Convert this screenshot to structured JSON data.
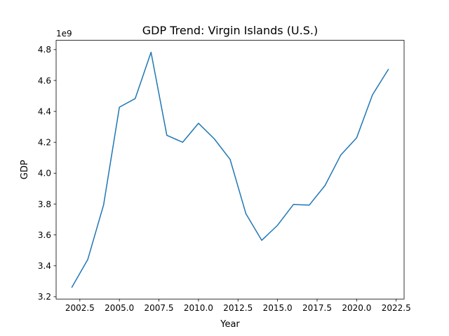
{
  "chart_data": {
    "type": "line",
    "title": "GDP Trend: Virgin Islands (U.S.)",
    "xlabel": "Year",
    "ylabel": "GDP",
    "y_offset_label": "1e9",
    "xlim": [
      2001,
      2023
    ],
    "ylim": [
      3.185,
      4.86
    ],
    "x_ticks": [
      2002.5,
      2005.0,
      2007.5,
      2010.0,
      2012.5,
      2015.0,
      2017.5,
      2020.0,
      2022.5
    ],
    "x_tick_labels": [
      "2002.5",
      "2005.0",
      "2007.5",
      "2010.0",
      "2012.5",
      "2015.0",
      "2017.5",
      "2020.0",
      "2022.5"
    ],
    "y_ticks": [
      3.2,
      3.4,
      3.6,
      3.8,
      4.0,
      4.2,
      4.4,
      4.6,
      4.8
    ],
    "y_tick_labels": [
      "3.2",
      "3.4",
      "3.6",
      "3.8",
      "4.0",
      "4.2",
      "4.4",
      "4.6",
      "4.8"
    ],
    "grid": false,
    "series": [
      {
        "color": "#1f77b4",
        "x": [
          2002,
          2003,
          2004,
          2005,
          2006,
          2007,
          2008,
          2009,
          2010,
          2011,
          2012,
          2013,
          2014,
          2015,
          2016,
          2017,
          2018,
          2019,
          2020,
          2021,
          2022
        ],
        "values": [
          3.262,
          3.441,
          3.794,
          4.427,
          4.483,
          4.783,
          4.245,
          4.2,
          4.323,
          4.222,
          4.089,
          3.737,
          3.565,
          3.663,
          3.797,
          3.793,
          3.92,
          4.118,
          4.229,
          4.507,
          4.671
        ]
      }
    ]
  }
}
